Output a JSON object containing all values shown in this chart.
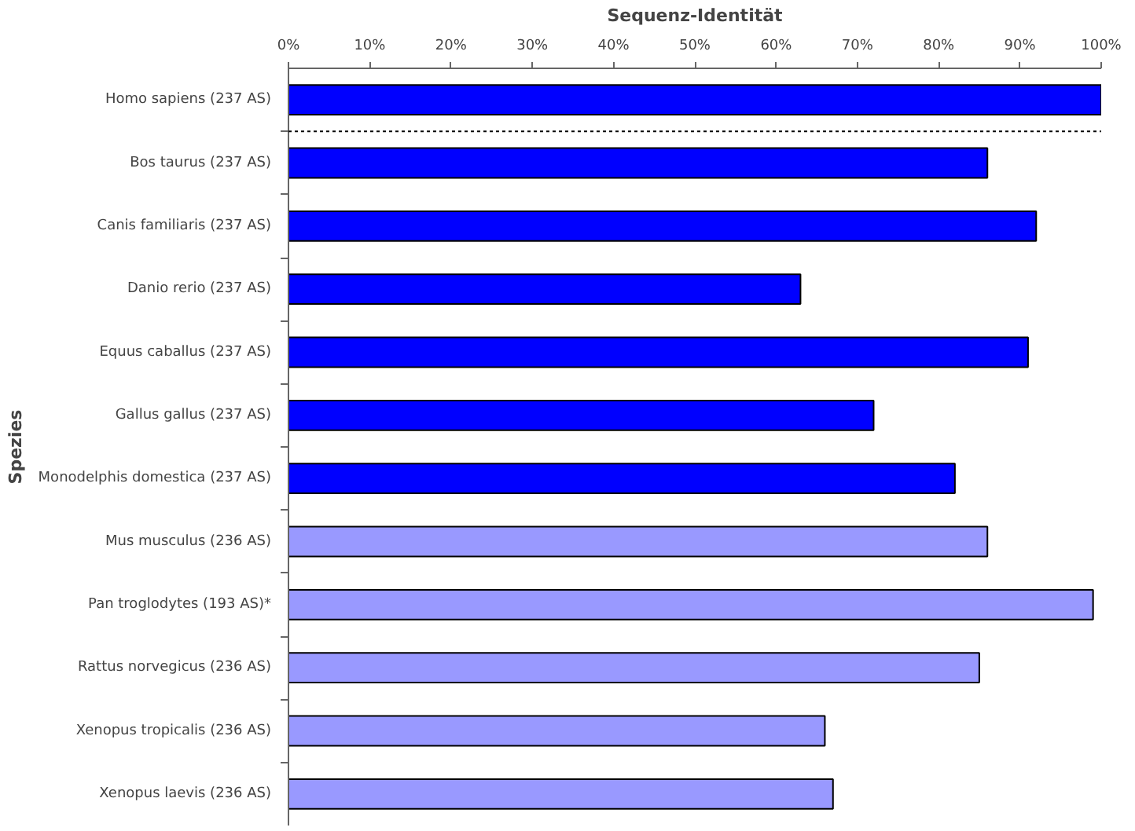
{
  "chart_data": {
    "type": "bar",
    "orientation": "horizontal",
    "xlabel": "Sequenz-Identität",
    "ylabel": "Spezies",
    "categories": [
      "Homo sapiens (237 AS)",
      "Bos taurus (237 AS)",
      "Canis familiaris (237 AS)",
      "Danio rerio (237 AS)",
      "Equus caballus (237 AS)",
      "Gallus gallus (237 AS)",
      "Monodelphis domestica (237 AS)",
      "Mus musculus (236 AS)",
      "Pan troglodytes (193 AS)*",
      "Rattus norvegicus (236 AS)",
      "Xenopus tropicalis (236 AS)",
      "Xenopus laevis (236 AS)"
    ],
    "values": [
      100,
      86,
      92,
      63,
      91,
      72,
      82,
      86,
      99,
      85,
      66,
      67
    ],
    "colors": [
      "#0000ff",
      "#0000ff",
      "#0000ff",
      "#0000ff",
      "#0000ff",
      "#0000ff",
      "#0000ff",
      "#9999ff",
      "#9999ff",
      "#9999ff",
      "#9999ff",
      "#9999ff"
    ],
    "xlim": [
      0,
      100
    ],
    "xticks": [
      {
        "value": 0,
        "label": "0%"
      },
      {
        "value": 10,
        "label": "10%"
      },
      {
        "value": 20,
        "label": "20%"
      },
      {
        "value": 30,
        "label": "30%"
      },
      {
        "value": 40,
        "label": "40%"
      },
      {
        "value": 50,
        "label": "50%"
      },
      {
        "value": 60,
        "label": "60%"
      },
      {
        "value": 70,
        "label": "70%"
      },
      {
        "value": 80,
        "label": "80%"
      },
      {
        "value": 90,
        "label": "90%"
      },
      {
        "value": 100,
        "label": "100%"
      }
    ],
    "grid": false
  }
}
